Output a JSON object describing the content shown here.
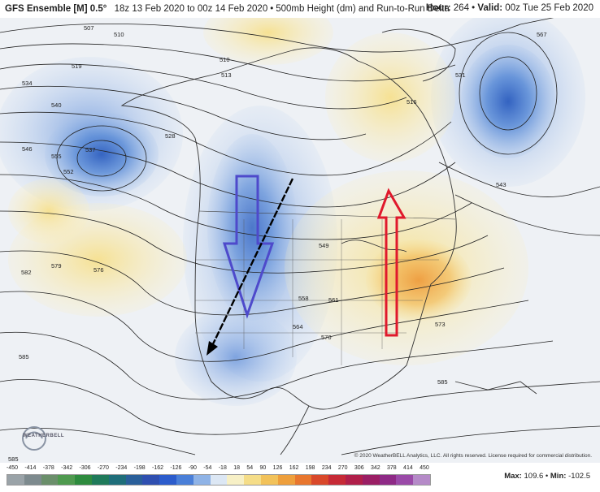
{
  "header": {
    "model": "GFS Ensemble [M] 0.5°",
    "period": "18z 13 Feb 2020 to 00z 14 Feb 2020",
    "bullet": "•",
    "product": "500mb Height (dm) and Run-to-Run Delta",
    "hour_label": "Hour:",
    "hour_value": "264",
    "valid_label": "Valid:",
    "valid_value": "00z Tue 25 Feb 2020"
  },
  "contour_labels": [
    "507",
    "510",
    "510",
    "513",
    "516",
    "519",
    "528",
    "531",
    "534",
    "537",
    "540",
    "543",
    "546",
    "549",
    "552",
    "555",
    "558",
    "561",
    "564",
    "567",
    "570",
    "573",
    "576",
    "579",
    "582",
    "585",
    "585",
    "585"
  ],
  "watermark": "WEATHERBELL",
  "copyright": "© 2020 WeatherBELL Analytics, LLC. All rights reserved. License required for commercial distribution.",
  "colorbar": {
    "ticks": [
      "-450",
      "-414",
      "-378",
      "-342",
      "-306",
      "-270",
      "-234",
      "-198",
      "-162",
      "-126",
      "-90",
      "-54",
      "-18",
      "18",
      "54",
      "90",
      "126",
      "162",
      "198",
      "234",
      "270",
      "306",
      "342",
      "378",
      "414",
      "450"
    ],
    "colors": [
      "#9aa3a8",
      "#7d8a8e",
      "#6b8f6b",
      "#4f9a4f",
      "#2e8b3e",
      "#1f7a5a",
      "#1f6e7a",
      "#2a5f9a",
      "#2f4fb0",
      "#2c5ccc",
      "#4a7fd8",
      "#8fb3e6",
      "#dce7f4",
      "#f7f0c6",
      "#f5dd88",
      "#f2c25a",
      "#ee9f3c",
      "#e8762e",
      "#d9482a",
      "#c62a36",
      "#b01f4a",
      "#9a1e64",
      "#8e2a86",
      "#9a4aa8",
      "#b58ac8"
    ]
  },
  "maxmin": {
    "max_label": "Max:",
    "max_value": "109.6",
    "bullet": "•",
    "min_label": "Min:",
    "min_value": "-102.5"
  },
  "annotations": {
    "blue_arrow": "down",
    "red_arrow": "up",
    "black_arrow": "southwest"
  }
}
